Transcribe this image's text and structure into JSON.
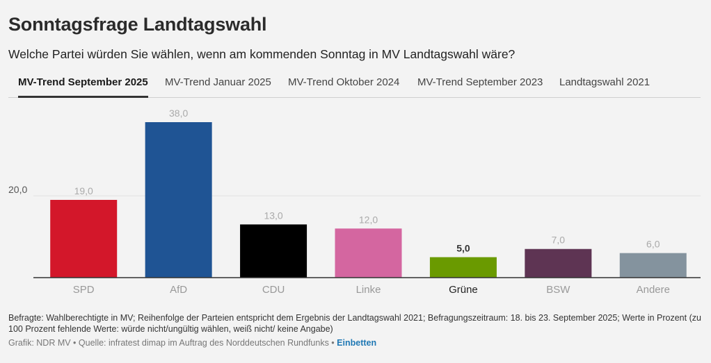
{
  "header": {
    "title": "Sonntagsfrage Landtagswahl",
    "subtitle": "Welche Partei würden Sie wählen, wenn am kommenden Sonntag in MV Landtagswahl wäre?"
  },
  "tabs": [
    {
      "label": "MV-Trend September 2025",
      "active": true
    },
    {
      "label": "MV-Trend Januar 2025",
      "active": false
    },
    {
      "label": "MV-Trend Oktober 2024",
      "active": false
    },
    {
      "label": "MV-Trend September 2023",
      "active": false
    },
    {
      "label": "Landtagswahl 2021",
      "active": false
    }
  ],
  "chart_data": {
    "type": "bar",
    "categories": [
      "SPD",
      "AfD",
      "CDU",
      "Linke",
      "Grüne",
      "BSW",
      "Andere"
    ],
    "values": [
      19.0,
      38.0,
      13.0,
      12.0,
      5.0,
      7.0,
      6.0
    ],
    "value_labels": [
      "19,0",
      "38,0",
      "13,0",
      "12,0",
      "5,0",
      "7,0",
      "6,0"
    ],
    "colors": [
      "#d3172a",
      "#1f5494",
      "#000000",
      "#d466a0",
      "#6a9a00",
      "#5e3453",
      "#84939e"
    ],
    "highlighted": "Grüne",
    "yticks": [
      {
        "value": 20,
        "label": "20,0"
      }
    ],
    "ylim": [
      0,
      38
    ],
    "title": "",
    "xlabel": "",
    "ylabel": ""
  },
  "footer": {
    "note": "Befragte: Wahlberechtigte in MV; Reihenfolge der Parteien entspricht dem Ergebnis der Landtagswahl 2021; Befragungszeitraum: 18. bis 23. September 2025; Werte in Prozent (zu 100 Prozent fehlende Werte: würde nicht/ungültig wählen, weiß nicht/ keine Angabe)",
    "source": "Grafik: NDR MV • Quelle: infratest dimap im Auftrag des Norddeutschen Rundfunks •",
    "embed_label": "Einbetten"
  }
}
